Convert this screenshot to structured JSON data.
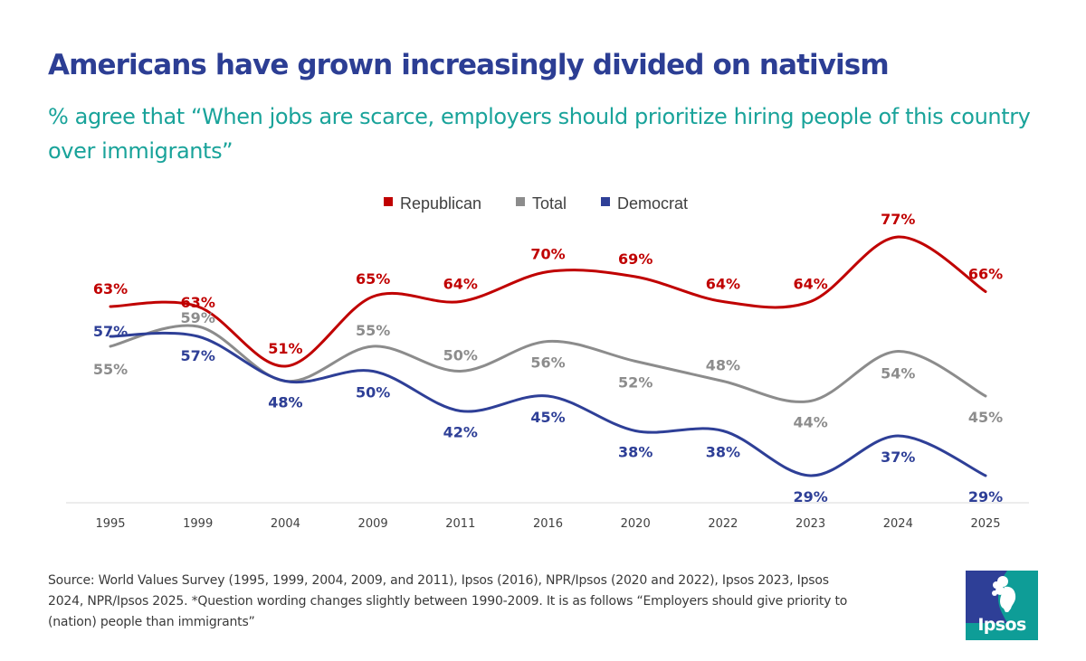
{
  "title": "Americans have grown increasingly divided on nativism",
  "subtitle": "% agree that “When jobs are scarce, employers should prioritize hiring people of this country over immigrants”",
  "chart_data": {
    "type": "line",
    "categories": [
      "1995",
      "1999",
      "2004",
      "2009",
      "2011",
      "2016",
      "2020",
      "2022",
      "2023",
      "2024",
      "2025"
    ],
    "series": [
      {
        "name": "Republican",
        "color": "#c00000",
        "values": [
          63,
          63,
          51,
          65,
          64,
          70,
          69,
          64,
          64,
          77,
          66
        ]
      },
      {
        "name": "Total",
        "color": "#8c8c8c",
        "values": [
          55,
          59,
          48,
          55,
          50,
          56,
          52,
          48,
          44,
          54,
          45
        ]
      },
      {
        "name": "Democrat",
        "color": "#2e3f97",
        "values": [
          57,
          57,
          48,
          50,
          42,
          45,
          38,
          38,
          29,
          37,
          29
        ]
      }
    ],
    "value_suffix": "%",
    "legend_position": "top-center",
    "grid": false,
    "smooth": true
  },
  "source": "Source: World Values Survey (1995, 1999, 2004, 2009, and 2011), Ipsos (2016), NPR/Ipsos (2020 and 2022), Ipsos 2023, Ipsos 2024, NPR/Ipsos 2025. *Question wording changes slightly between 1990-2009. It is as follows “Employers should give priority to (nation) people than immigrants”",
  "logo": {
    "text": "Ipsos",
    "icon": "ipsos-head-icon",
    "color": "#0e9d97"
  }
}
